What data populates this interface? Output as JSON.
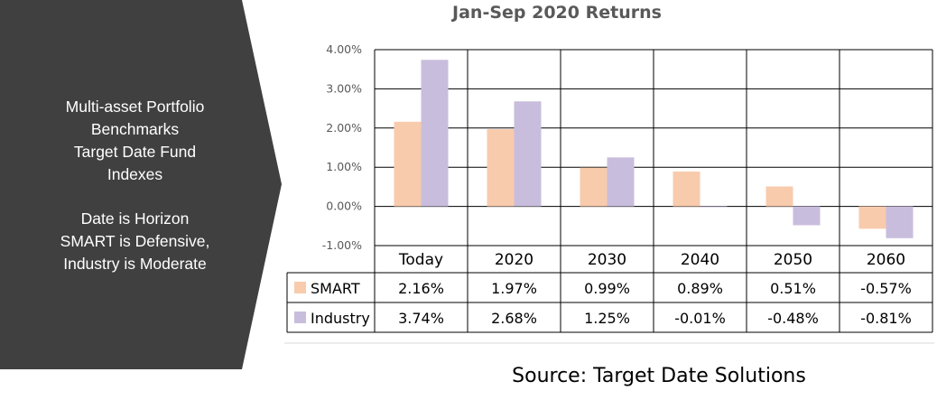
{
  "sidebar": {
    "lines_top": [
      "Multi-asset Portfolio",
      "Benchmarks",
      "Target Date Fund",
      "Indexes"
    ],
    "lines_bottom": [
      "Date is Horizon",
      "SMART is Defensive,",
      "Industry is Moderate"
    ]
  },
  "source": "Source: Target Date Solutions",
  "colors": {
    "panel": "#404040",
    "smart": "#f8cbad",
    "industry": "#c9bddd",
    "grid": "#000000"
  },
  "chart_data": {
    "type": "bar",
    "title": "Jan-Sep 2020 Returns",
    "categories": [
      "Today",
      "2020",
      "2030",
      "2040",
      "2050",
      "2060"
    ],
    "series": [
      {
        "name": "SMART",
        "values": [
          2.16,
          1.97,
          0.99,
          0.89,
          0.51,
          -0.57
        ],
        "labels": [
          "2.16%",
          "1.97%",
          "0.99%",
          "0.89%",
          "0.51%",
          "-0.57%"
        ]
      },
      {
        "name": "Industry",
        "values": [
          3.74,
          2.68,
          1.25,
          -0.01,
          -0.48,
          -0.81
        ],
        "labels": [
          "3.74%",
          "2.68%",
          "1.25%",
          "-0.01%",
          "-0.48%",
          "-0.81%"
        ]
      }
    ],
    "yticks": [
      "4.00%",
      "3.00%",
      "2.00%",
      "1.00%",
      "0.00%",
      "-1.00%"
    ],
    "ylim": [
      -1,
      4
    ],
    "grid": true,
    "legend": "data-table"
  }
}
